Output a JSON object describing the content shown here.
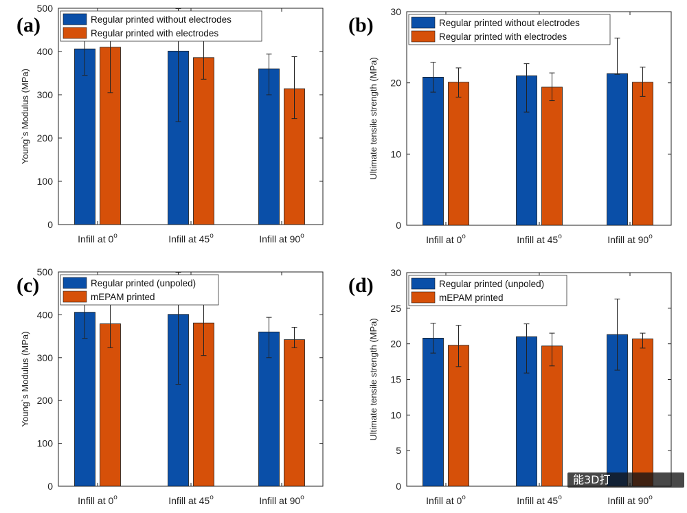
{
  "colors": {
    "blue": "#0a4fa8",
    "orange": "#d65009"
  },
  "watermark": {
    "text": "能3D打"
  },
  "chart_data": [
    {
      "type": "bar",
      "tag": "(a)",
      "categories": [
        "Infill at 0",
        "Infill at 45",
        "Infill at 90"
      ],
      "category_superscript": "o",
      "ylabel": "Young`s Modulus (MPa)",
      "ylim": [
        0,
        500
      ],
      "yticks": [
        0,
        100,
        200,
        300,
        400,
        500
      ],
      "grid": false,
      "legend_position": "top",
      "series": [
        {
          "name": "Regular printed without electrodes",
          "color": "#0a4fa8",
          "values": [
            406,
            401,
            360
          ],
          "err_low": [
            345,
            238,
            300
          ],
          "err_high": [
            460,
            499,
            394
          ]
        },
        {
          "name": "Regular printed with electrodes",
          "color": "#d65009",
          "values": [
            410,
            386,
            314
          ],
          "err_low": [
            305,
            336,
            245
          ],
          "err_high": [
            450,
            457,
            388
          ]
        }
      ]
    },
    {
      "type": "bar",
      "tag": "(b)",
      "categories": [
        "Infill at 0",
        "Infill at 45",
        "Infill at 90"
      ],
      "category_superscript": "o",
      "ylabel": "Ultimate tensile strength (MPa)",
      "ylim": [
        0,
        30
      ],
      "yticks": [
        0,
        10,
        20,
        30
      ],
      "grid": false,
      "legend_position": "top",
      "series": [
        {
          "name": "Regular printed without electrodes",
          "color": "#0a4fa8",
          "values": [
            20.8,
            21.0,
            21.3
          ],
          "err_low": [
            18.7,
            15.9,
            21.2
          ],
          "err_high": [
            22.9,
            22.7,
            26.3
          ]
        },
        {
          "name": "Regular printed with electrodes",
          "color": "#d65009",
          "values": [
            20.1,
            19.4,
            20.1
          ],
          "err_low": [
            18.0,
            17.5,
            18.1
          ],
          "err_high": [
            22.1,
            21.4,
            22.2
          ]
        }
      ]
    },
    {
      "type": "bar",
      "tag": "(c)",
      "categories": [
        "Infill at 0",
        "Infill at 45",
        "Infill at 90"
      ],
      "category_superscript": "o",
      "ylabel": "Young`s Modulus (MPa)",
      "ylim": [
        0,
        500
      ],
      "yticks": [
        0,
        100,
        200,
        300,
        400,
        500
      ],
      "grid": false,
      "legend_position": "top",
      "series": [
        {
          "name": "Regular printed (unpoled)",
          "color": "#0a4fa8",
          "values": [
            406,
            401,
            360
          ],
          "err_low": [
            345,
            238,
            300
          ],
          "err_high": [
            460,
            499,
            394
          ]
        },
        {
          "name": "mEPAM printed",
          "color": "#d65009",
          "values": [
            379,
            381,
            342
          ],
          "err_low": [
            323,
            305,
            323
          ],
          "err_high": [
            442,
            432,
            371
          ]
        }
      ]
    },
    {
      "type": "bar",
      "tag": "(d)",
      "categories": [
        "Infill at 0",
        "Infill at 45",
        "Infill at 90"
      ],
      "category_superscript": "o",
      "ylabel": "Ultimate tensile strength (MPa)",
      "ylim": [
        0,
        30
      ],
      "yticks": [
        0,
        5,
        10,
        15,
        20,
        25,
        30
      ],
      "grid": false,
      "legend_position": "top",
      "series": [
        {
          "name": "Regular printed (unpoled)",
          "color": "#0a4fa8",
          "values": [
            20.8,
            21.0,
            21.3
          ],
          "err_low": [
            18.7,
            15.9,
            16.3
          ],
          "err_high": [
            22.9,
            22.8,
            26.3
          ]
        },
        {
          "name": "mEPAM printed",
          "color": "#d65009",
          "values": [
            19.8,
            19.7,
            20.7
          ],
          "err_low": [
            16.8,
            16.9,
            19.4
          ],
          "err_high": [
            22.6,
            21.5,
            21.5
          ]
        }
      ]
    }
  ]
}
